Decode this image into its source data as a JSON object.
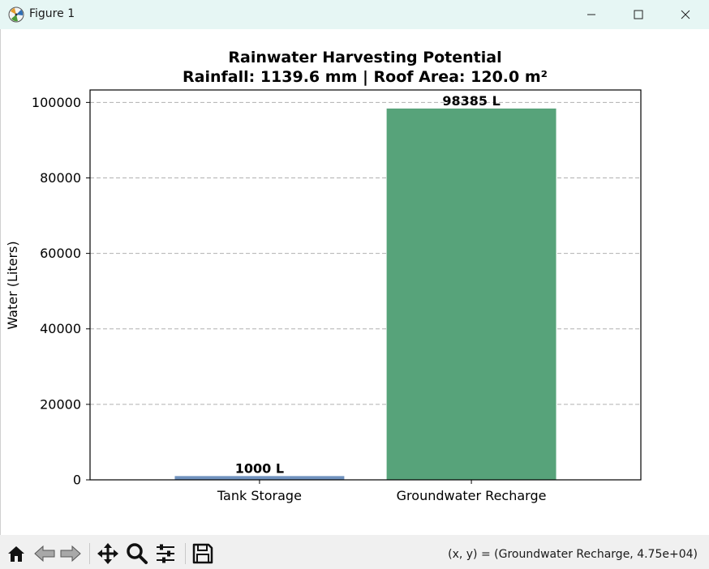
{
  "window": {
    "title": "Figure 1",
    "icons": [
      "matplotlib-icon",
      "minimize-icon",
      "maximize-icon",
      "close-icon"
    ]
  },
  "chart_data": {
    "type": "bar",
    "title": "Rainwater Harvesting Potential",
    "subtitle": "Rainfall: 1139.6 mm | Roof Area: 120.0 m²",
    "ylabel": "Water (Liters)",
    "xlabel": "",
    "categories": [
      "Tank Storage",
      "Groundwater Recharge"
    ],
    "values": [
      1000,
      98385
    ],
    "value_labels": [
      "1000 L",
      "98385 L"
    ],
    "colors": [
      "#7092be",
      "#57a37a"
    ],
    "ylim": [
      0,
      103300
    ],
    "yticks": [
      0,
      20000,
      40000,
      60000,
      80000,
      100000
    ],
    "ytick_labels": [
      "0",
      "20000",
      "40000",
      "60000",
      "80000",
      "100000"
    ],
    "grid": "y-dashed"
  },
  "toolbar": {
    "icons": [
      "home-icon",
      "back-icon",
      "forward-icon",
      "pan-icon",
      "zoom-icon",
      "configure-subplots-icon",
      "save-icon"
    ],
    "coord_readout": "(x, y) = (Groundwater Recharge, 4.75e+04)"
  }
}
